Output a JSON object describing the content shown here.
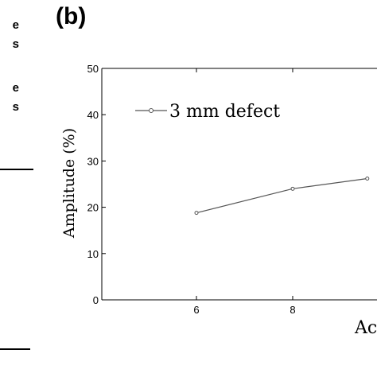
{
  "left_fragments": [
    "e",
    "s",
    "e",
    "s"
  ],
  "panel_label": "(b)",
  "chart_data": {
    "type": "line",
    "ylabel": "Amplitude (%)",
    "xlabel": "Ac",
    "ylim": [
      0,
      50
    ],
    "x_ticks": [
      6,
      8
    ],
    "y_ticks": [
      0,
      10,
      20,
      30,
      40,
      50
    ],
    "grid": false,
    "legend_position": "top-left",
    "series": [
      {
        "name": "3 mm defect",
        "color": "#555555",
        "points": [
          {
            "x": 6,
            "y": 18.8
          },
          {
            "x": 8,
            "y": 24.0
          },
          {
            "x": 9.55,
            "y": 26.2
          }
        ]
      }
    ]
  }
}
